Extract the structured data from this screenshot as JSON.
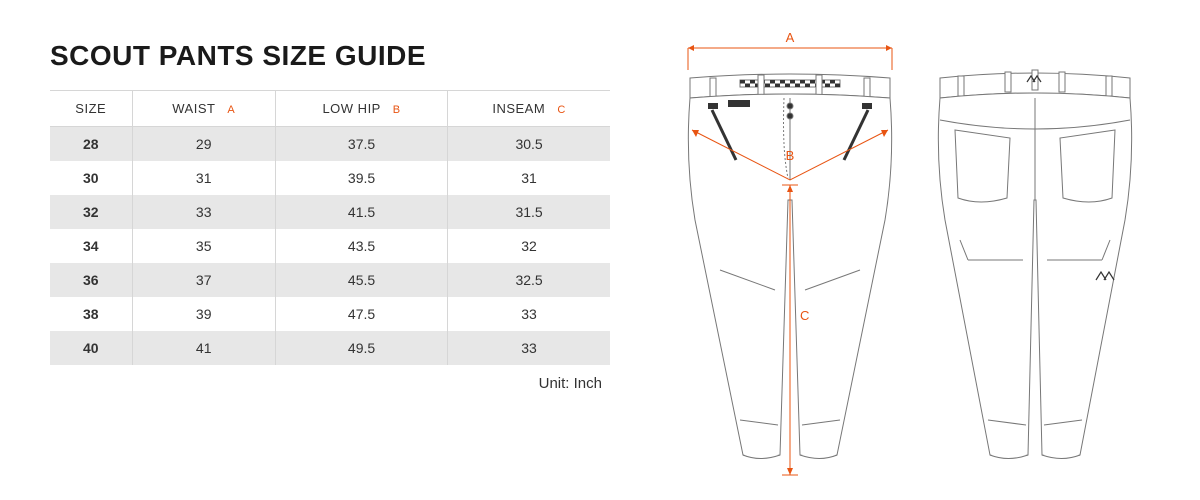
{
  "title": "SCOUT PANTS SIZE GUIDE",
  "unit_label": "Unit: Inch",
  "accent_color": "#e85412",
  "table": {
    "columns": [
      {
        "label": "SIZE",
        "sub": ""
      },
      {
        "label": "WAIST",
        "sub": "A"
      },
      {
        "label": "LOW HIP",
        "sub": "B"
      },
      {
        "label": "INSEAM",
        "sub": "C"
      }
    ],
    "rows": [
      [
        "28",
        "29",
        "37.5",
        "30.5"
      ],
      [
        "30",
        "31",
        "39.5",
        "31"
      ],
      [
        "32",
        "33",
        "41.5",
        "31.5"
      ],
      [
        "34",
        "35",
        "43.5",
        "32"
      ],
      [
        "36",
        "37",
        "45.5",
        "32.5"
      ],
      [
        "38",
        "39",
        "47.5",
        "33"
      ],
      [
        "40",
        "41",
        "49.5",
        "33"
      ]
    ],
    "stripe_odd": "#e7e7e7",
    "stripe_even": "#ffffff",
    "border_color": "#d6d6d6"
  },
  "diagram": {
    "measure_labels": {
      "A": "A",
      "B": "B",
      "C": "C"
    },
    "line_color": "#777777",
    "line_width": 1,
    "accent": "#e85412"
  }
}
